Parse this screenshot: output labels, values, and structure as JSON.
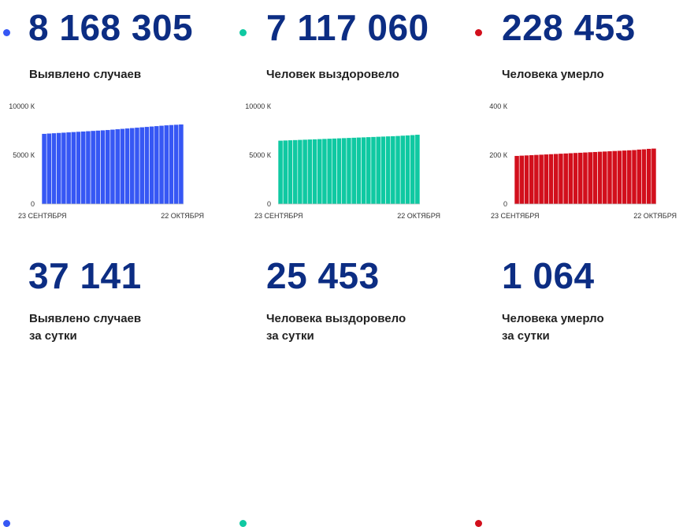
{
  "colors": {
    "blue": "#3657f4",
    "teal": "#0fc9a2",
    "red": "#d20f1c",
    "number": "#0c2d83"
  },
  "stats": [
    {
      "key": "cases",
      "color": "#3657f4",
      "total": "8 168 305",
      "total_label": "Выявлено случаев",
      "daily": "37 141",
      "daily_label_1": "Выявлено случаев",
      "daily_label_2": "за сутки"
    },
    {
      "key": "recovered",
      "color": "#0fc9a2",
      "total": "7 117 060",
      "total_label": "Человек выздоровело",
      "daily": "25 453",
      "daily_label_1": "Человека выздоровело",
      "daily_label_2": "за сутки"
    },
    {
      "key": "deaths",
      "color": "#d20f1c",
      "total": "228 453",
      "total_label": "Человека умерло",
      "daily": "1 064",
      "daily_label_1": "Человека умерло",
      "daily_label_2": "за сутки"
    }
  ],
  "chart_data": [
    {
      "type": "bar",
      "color": "#3657f4",
      "x_start_label": "23 СЕНТЯБРЯ",
      "x_end_label": "22 ОКТЯБРЯ",
      "y_ticks": [
        "10000 К",
        "5000 К",
        "0"
      ],
      "ylim": [
        0,
        10000
      ],
      "unit": "К",
      "values": [
        7210,
        7240,
        7270,
        7300,
        7330,
        7360,
        7390,
        7420,
        7450,
        7480,
        7510,
        7540,
        7570,
        7600,
        7640,
        7680,
        7720,
        7760,
        7800,
        7840,
        7880,
        7920,
        7960,
        8000,
        8040,
        8080,
        8110,
        8140,
        8168
      ]
    },
    {
      "type": "bar",
      "color": "#0fc9a2",
      "x_start_label": "23 СЕНТЯБРЯ",
      "x_end_label": "22 ОКТЯБРЯ",
      "y_ticks": [
        "10000 К",
        "5000 К",
        "0"
      ],
      "ylim": [
        0,
        10000
      ],
      "unit": "К",
      "values": [
        6510,
        6530,
        6550,
        6570,
        6590,
        6610,
        6630,
        6650,
        6670,
        6690,
        6710,
        6730,
        6750,
        6770,
        6790,
        6810,
        6830,
        6850,
        6870,
        6890,
        6910,
        6930,
        6950,
        6970,
        6990,
        7020,
        7050,
        7080,
        7117
      ]
    },
    {
      "type": "bar",
      "color": "#d20f1c",
      "x_start_label": "23 СЕНТЯБРЯ",
      "x_end_label": "22 ОКТЯБРЯ",
      "y_ticks": [
        "400 К",
        "200 К",
        "0"
      ],
      "ylim": [
        0,
        400
      ],
      "unit": "К",
      "values": [
        198,
        199,
        200,
        201,
        202,
        203,
        204,
        205,
        206,
        207,
        208,
        209,
        210,
        211,
        212,
        213,
        214,
        215,
        216,
        217,
        218,
        219,
        220,
        221,
        222,
        224,
        225,
        227,
        228
      ]
    }
  ]
}
